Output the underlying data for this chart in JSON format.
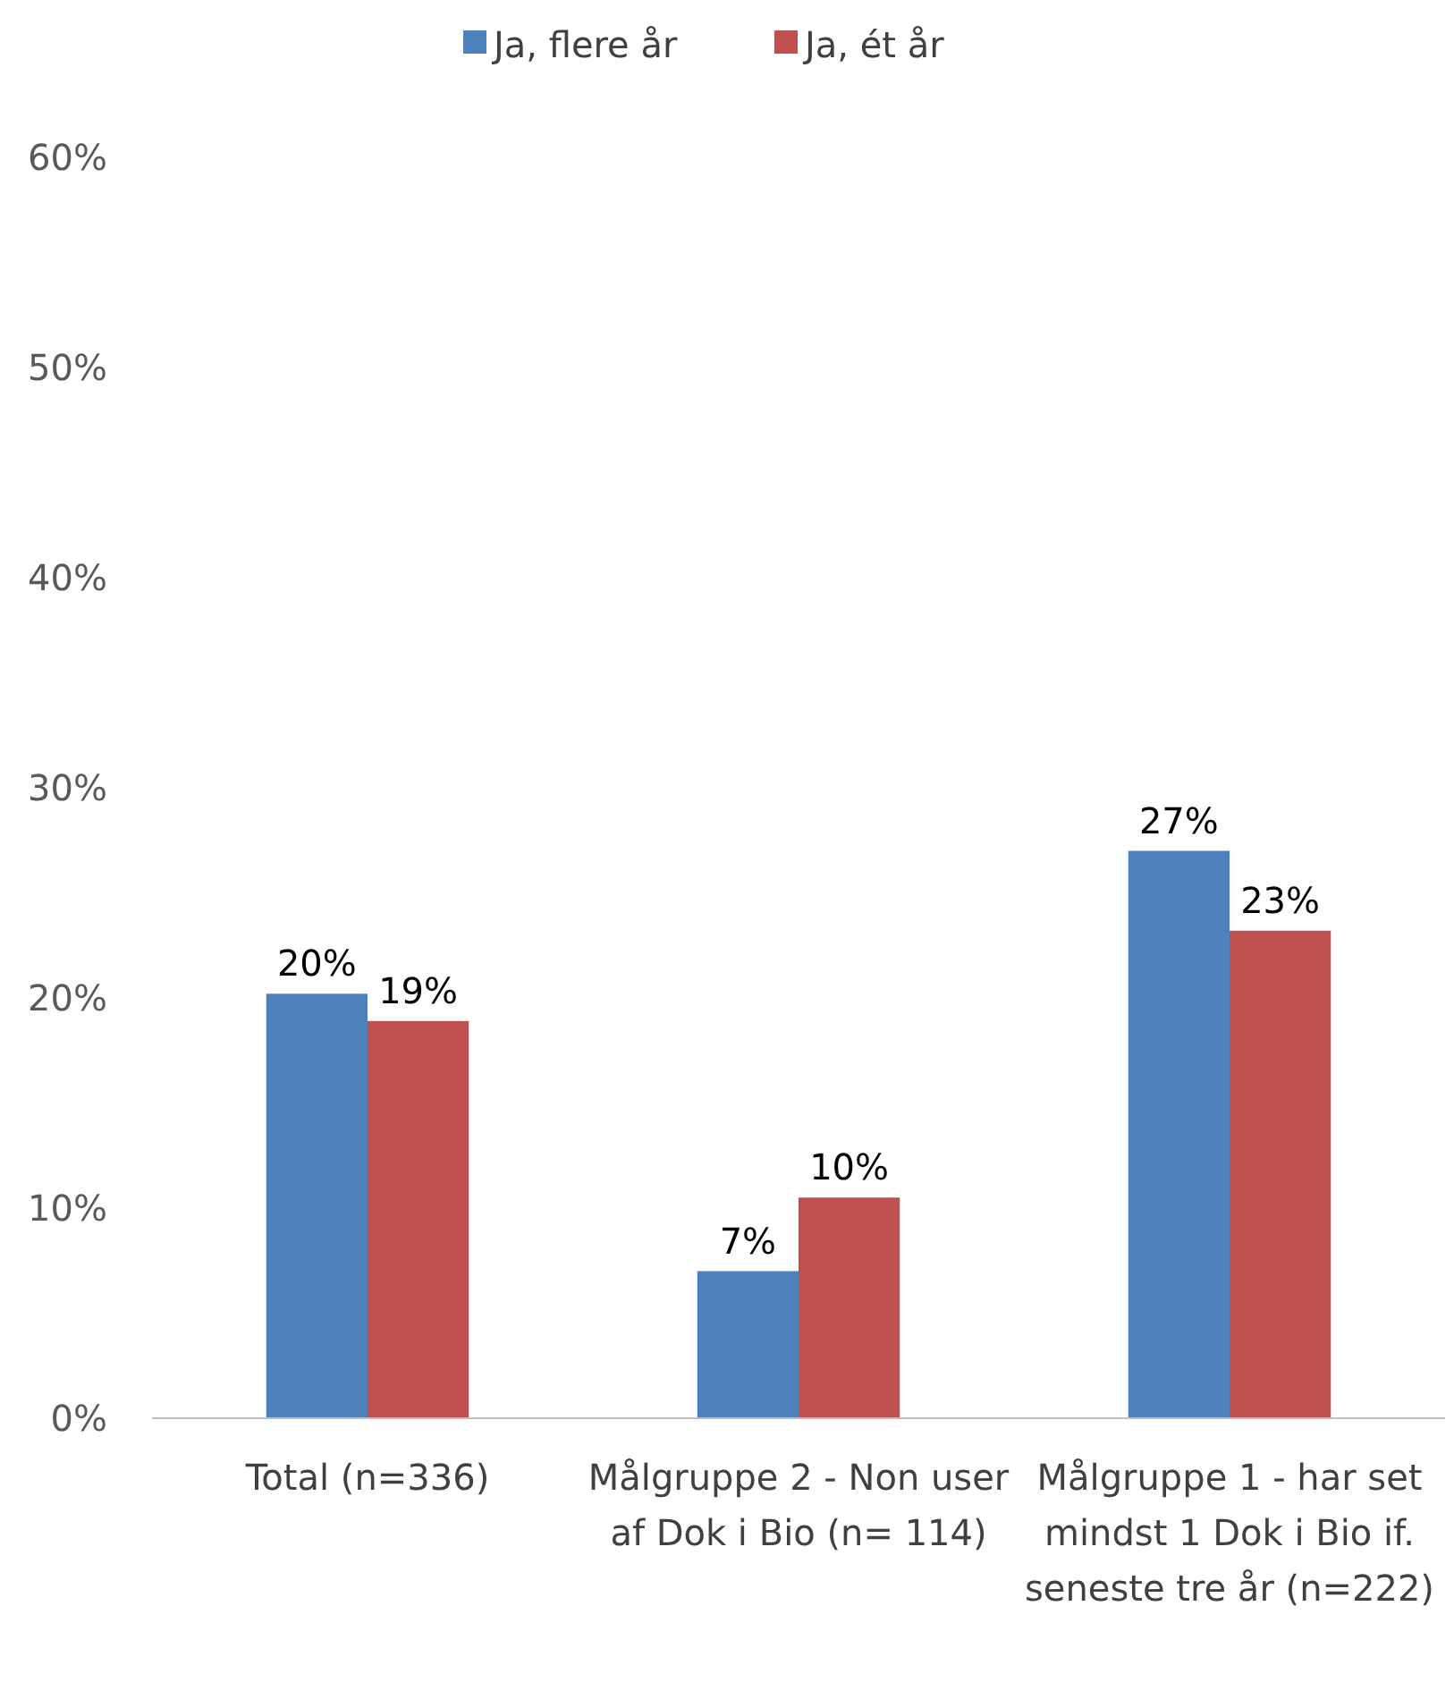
{
  "chart_data": {
    "type": "bar",
    "categories": [
      "Total (n=336)",
      "Målgruppe 2 - Non user af Dok i Bio (n= 114)",
      "Målgruppe 1 - har set mindst 1 Dok i Bio if. seneste tre år (n=222)"
    ],
    "series": [
      {
        "name": "Ja, flere år",
        "color": "#4f81bd",
        "values": [
          20.2,
          7,
          27
        ],
        "value_labels": [
          "20%",
          "7%",
          "27%"
        ]
      },
      {
        "name": "Ja, ét år",
        "color": "#c0504d",
        "values": [
          18.9,
          10.5,
          23.2
        ],
        "value_labels": [
          "19%",
          "10%",
          "23%"
        ]
      }
    ],
    "ylim": [
      0,
      60
    ],
    "yticks": [
      {
        "value": 0,
        "label": "0%"
      },
      {
        "value": 10,
        "label": "10%"
      },
      {
        "value": 20,
        "label": "20%"
      },
      {
        "value": 30,
        "label": "30%"
      },
      {
        "value": 40,
        "label": "40%"
      },
      {
        "value": 50,
        "label": "50%"
      },
      {
        "value": 60,
        "label": "60%"
      }
    ],
    "legend": "top",
    "grid": false
  }
}
